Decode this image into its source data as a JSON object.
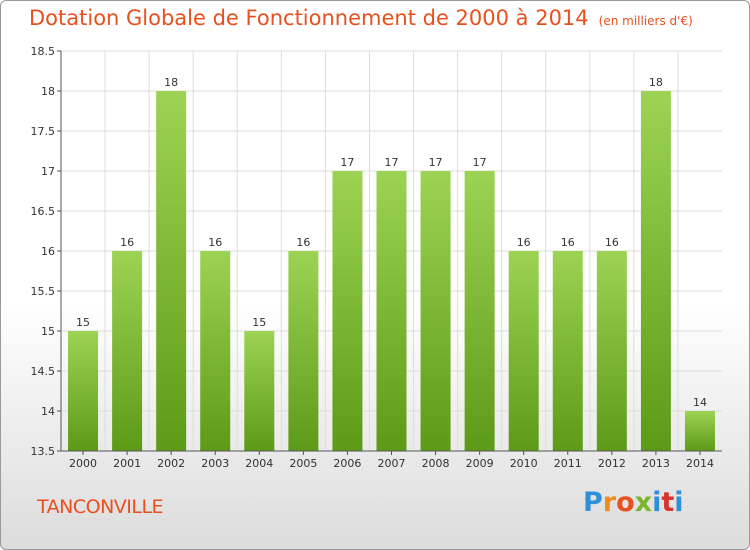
{
  "title": "Dotation Globale de Fonctionnement de 2000 à 2014",
  "subtitle": "(en milliers d'€)",
  "place_name": "TANCONVILLE",
  "logo_text": "Proxiti",
  "colors": {
    "title": "#e8501e",
    "bar_top": "#9dd354",
    "bar_bottom": "#5d9a17",
    "grid": "#dddddd",
    "axis": "#555555"
  },
  "chart_data": {
    "type": "bar",
    "categories": [
      "2000",
      "2001",
      "2002",
      "2003",
      "2004",
      "2005",
      "2006",
      "2007",
      "2008",
      "2009",
      "2010",
      "2011",
      "2012",
      "2013",
      "2014"
    ],
    "values": [
      15,
      16,
      18,
      16,
      15,
      16,
      17,
      17,
      17,
      17,
      16,
      16,
      16,
      18,
      14
    ],
    "data_labels": [
      "15",
      "16",
      "18",
      "16",
      "15",
      "16",
      "17",
      "17",
      "17",
      "17",
      "16",
      "16",
      "16",
      "18",
      "14"
    ],
    "ylim": [
      13.5,
      18.5
    ],
    "yticks": [
      13.5,
      14,
      14.5,
      15,
      15.5,
      16,
      16.5,
      17,
      17.5,
      18,
      18.5
    ],
    "ytick_labels": [
      "13.5",
      "14",
      "14.5",
      "15",
      "15.5",
      "16",
      "16.5",
      "17",
      "17.5",
      "18",
      "18.5"
    ],
    "grid": true,
    "xlabel": "",
    "ylabel": ""
  }
}
